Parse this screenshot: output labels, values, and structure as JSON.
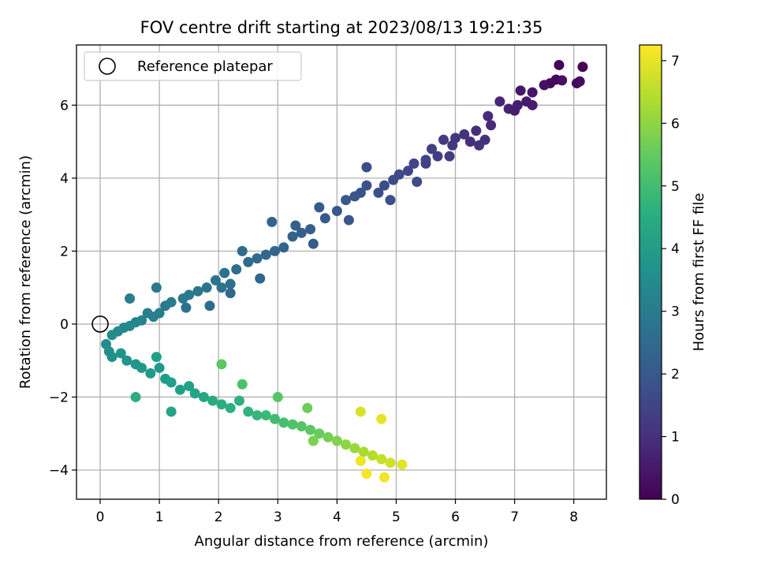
{
  "chart_data": {
    "type": "scatter",
    "title": "FOV centre drift starting at 2023/08/13 19:21:35",
    "xlabel": "Angular distance from reference (arcmin)",
    "ylabel": "Rotation from reference (arcmin)",
    "xlim": [
      -0.4,
      8.55
    ],
    "ylim": [
      -4.8,
      7.65
    ],
    "xticks": [
      0,
      1,
      2,
      3,
      4,
      5,
      6,
      7,
      8
    ],
    "yticks": [
      -4,
      -2,
      0,
      2,
      4,
      6
    ],
    "grid": true,
    "legend": {
      "position": "top-left",
      "entries": [
        "Reference platepar"
      ]
    },
    "reference_point": {
      "x": 0,
      "y": 0
    },
    "colorbar": {
      "label": "Hours from first FF file",
      "range": [
        0,
        7.25
      ],
      "ticks": [
        0,
        1,
        2,
        3,
        4,
        5,
        6,
        7
      ],
      "colormap": "viridis"
    },
    "series": [
      {
        "points": [
          [
            8.15,
            7.05,
            0.0
          ],
          [
            7.75,
            7.1,
            0.05
          ],
          [
            7.7,
            6.7,
            0.1
          ],
          [
            7.6,
            6.6,
            0.15
          ],
          [
            8.05,
            6.6,
            0.2
          ],
          [
            8.1,
            6.65,
            0.25
          ],
          [
            7.8,
            6.68,
            0.3
          ],
          [
            7.3,
            6.35,
            0.4
          ],
          [
            7.1,
            6.4,
            0.45
          ],
          [
            7.2,
            6.1,
            0.5
          ],
          [
            7.3,
            6.0,
            0.55
          ],
          [
            7.05,
            6.0,
            0.6
          ],
          [
            6.9,
            5.9,
            0.7
          ],
          [
            6.75,
            6.1,
            0.75
          ],
          [
            6.55,
            5.7,
            0.85
          ],
          [
            6.6,
            5.45,
            0.9
          ],
          [
            6.35,
            5.3,
            0.95
          ],
          [
            6.25,
            5.0,
            1.0
          ],
          [
            6.4,
            4.9,
            1.05
          ],
          [
            6.15,
            5.2,
            1.1
          ],
          [
            6.0,
            5.1,
            1.15
          ],
          [
            5.95,
            4.9,
            1.2
          ],
          [
            5.8,
            5.05,
            1.25
          ],
          [
            5.7,
            4.6,
            1.3
          ],
          [
            5.6,
            4.8,
            1.35
          ],
          [
            5.5,
            4.4,
            1.4
          ],
          [
            5.3,
            4.4,
            1.5
          ],
          [
            5.5,
            4.5,
            1.45
          ],
          [
            5.2,
            4.2,
            1.55
          ],
          [
            5.05,
            4.1,
            1.6
          ],
          [
            4.95,
            3.95,
            1.65
          ],
          [
            4.8,
            3.8,
            1.7
          ],
          [
            4.7,
            3.6,
            1.75
          ],
          [
            4.5,
            4.3,
            1.7
          ],
          [
            4.4,
            3.6,
            1.85
          ],
          [
            4.5,
            3.8,
            1.8
          ],
          [
            4.3,
            3.5,
            1.9
          ],
          [
            4.15,
            3.4,
            1.95
          ],
          [
            4.0,
            3.1,
            2.0
          ],
          [
            3.8,
            2.9,
            2.05
          ],
          [
            3.7,
            3.2,
            2.05
          ],
          [
            3.55,
            2.6,
            2.15
          ],
          [
            3.4,
            2.5,
            2.2
          ],
          [
            3.25,
            2.4,
            2.25
          ],
          [
            3.3,
            2.7,
            2.2
          ],
          [
            3.1,
            2.1,
            2.3
          ],
          [
            2.95,
            2.0,
            2.35
          ],
          [
            2.9,
            2.8,
            2.3
          ],
          [
            2.8,
            1.9,
            2.4
          ],
          [
            2.65,
            1.8,
            2.45
          ],
          [
            2.5,
            1.7,
            2.5
          ],
          [
            2.4,
            2.0,
            2.55
          ],
          [
            2.3,
            1.5,
            2.6
          ],
          [
            2.2,
            1.1,
            2.65
          ],
          [
            2.1,
            1.4,
            2.7
          ],
          [
            2.05,
            1.0,
            2.72
          ],
          [
            1.95,
            1.2,
            2.75
          ],
          [
            1.8,
            1.0,
            2.8
          ],
          [
            1.65,
            0.9,
            2.85
          ],
          [
            1.5,
            0.8,
            2.9
          ],
          [
            1.4,
            0.7,
            2.95
          ],
          [
            1.2,
            0.6,
            3.0
          ],
          [
            1.1,
            0.5,
            3.05
          ],
          [
            1.0,
            0.3,
            3.1
          ],
          [
            0.9,
            0.2,
            3.15
          ],
          [
            0.8,
            0.3,
            3.2
          ],
          [
            0.7,
            0.1,
            3.25
          ],
          [
            0.6,
            0.05,
            3.3
          ],
          [
            0.5,
            -0.05,
            3.35
          ],
          [
            0.4,
            -0.1,
            3.4
          ],
          [
            0.3,
            -0.2,
            3.45
          ],
          [
            0.2,
            -0.3,
            3.5
          ],
          [
            0.1,
            -0.55,
            3.55
          ],
          [
            0.15,
            -0.75,
            3.6
          ],
          [
            0.2,
            -0.9,
            3.65
          ],
          [
            0.35,
            -0.8,
            3.7
          ],
          [
            0.45,
            -1.0,
            3.75
          ],
          [
            0.6,
            -1.1,
            3.8
          ],
          [
            0.7,
            -1.2,
            3.85
          ],
          [
            0.85,
            -1.35,
            3.9
          ],
          [
            1.0,
            -1.2,
            3.95
          ],
          [
            1.1,
            -1.5,
            4.0
          ],
          [
            1.2,
            -1.6,
            4.05
          ],
          [
            1.35,
            -1.8,
            4.1
          ],
          [
            1.5,
            -1.7,
            4.15
          ],
          [
            1.6,
            -1.9,
            4.2
          ],
          [
            1.75,
            -2.0,
            4.3
          ],
          [
            1.9,
            -2.1,
            4.4
          ],
          [
            2.05,
            -2.2,
            4.5
          ],
          [
            2.2,
            -2.3,
            4.55
          ],
          [
            2.35,
            -2.1,
            4.6
          ],
          [
            2.5,
            -2.4,
            4.7
          ],
          [
            2.65,
            -2.5,
            4.8
          ],
          [
            2.8,
            -2.5,
            4.9
          ],
          [
            2.95,
            -2.6,
            5.0
          ],
          [
            3.1,
            -2.7,
            5.1
          ],
          [
            3.25,
            -2.75,
            5.2
          ],
          [
            3.4,
            -2.8,
            5.3
          ],
          [
            3.55,
            -2.9,
            5.4
          ],
          [
            3.7,
            -3.0,
            5.55
          ],
          [
            3.85,
            -3.1,
            5.7
          ],
          [
            4.0,
            -3.2,
            5.85
          ],
          [
            4.15,
            -3.3,
            6.0
          ],
          [
            4.3,
            -3.4,
            6.15
          ],
          [
            4.45,
            -3.5,
            6.3
          ],
          [
            4.6,
            -3.6,
            6.45
          ],
          [
            4.75,
            -3.7,
            6.6
          ],
          [
            4.9,
            -3.8,
            6.75
          ],
          [
            5.1,
            -3.85,
            6.95
          ],
          [
            4.8,
            -4.2,
            7.1
          ],
          [
            4.5,
            -4.1,
            7.15
          ],
          [
            4.4,
            -3.75,
            7.05
          ],
          [
            4.75,
            -2.6,
            7.0
          ],
          [
            4.4,
            -2.4,
            6.8
          ],
          [
            3.6,
            -3.2,
            5.8
          ],
          [
            3.5,
            -2.3,
            5.6
          ],
          [
            3.0,
            -2.0,
            5.3
          ],
          [
            2.4,
            -1.65,
            5.15
          ],
          [
            2.05,
            -1.1,
            5.4
          ],
          [
            1.2,
            -2.4,
            4.2
          ],
          [
            0.6,
            -2.0,
            4.5
          ],
          [
            0.95,
            -0.9,
            4.1
          ],
          [
            0.5,
            0.7,
            3.0
          ],
          [
            0.95,
            1.0,
            2.95
          ],
          [
            1.45,
            0.45,
            2.7
          ],
          [
            1.85,
            0.5,
            2.55
          ],
          [
            2.2,
            0.85,
            2.45
          ],
          [
            2.7,
            1.25,
            2.35
          ],
          [
            3.6,
            2.2,
            2.1
          ],
          [
            4.2,
            2.85,
            1.95
          ],
          [
            4.9,
            3.4,
            1.75
          ],
          [
            5.35,
            3.9,
            1.6
          ],
          [
            5.9,
            4.6,
            1.3
          ],
          [
            6.5,
            5.05,
            1.05
          ],
          [
            7.0,
            5.85,
            0.6
          ],
          [
            7.5,
            6.55,
            0.3
          ]
        ]
      }
    ]
  }
}
